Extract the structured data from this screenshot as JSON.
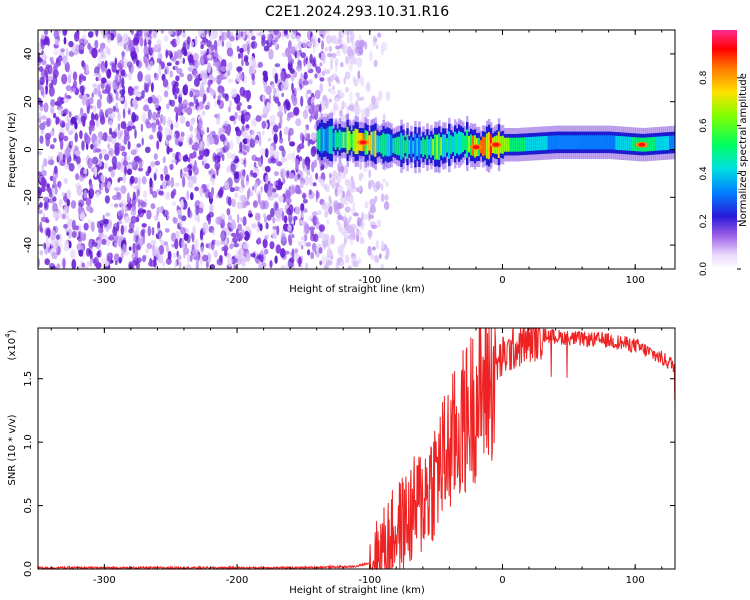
{
  "title": "C2E1.2024.293.10.31.R16",
  "chart_data": [
    {
      "type": "heatmap",
      "xlabel": "Height of straight line (km)",
      "ylabel": "Frequency (Hz)",
      "xlim": [
        -350,
        130
      ],
      "ylim": [
        -50,
        50
      ],
      "xticks": [
        -300,
        -200,
        -100,
        0,
        100
      ],
      "yticks": [
        -40,
        -20,
        0,
        20,
        40
      ],
      "colorbar": {
        "label": "Normalized spectral amplitude",
        "range": [
          0,
          1
        ],
        "ticks": [
          "0.0",
          "0.2",
          "0.4",
          "0.6",
          "0.8"
        ],
        "colors": [
          "#ffffff",
          "#c9a8f5",
          "#7f3fe0",
          "#2a1ad9",
          "#0050ff",
          "#00d6ff",
          "#00ff7a",
          "#7dff00",
          "#fff000",
          "#ff8a00",
          "#ff0000",
          "#ff2aa0"
        ]
      },
      "noise_region_x": [
        -350,
        -105
      ],
      "signal_band": [
        {
          "x": -140,
          "f": 4,
          "amp": 0.5
        },
        {
          "x": -120,
          "f": 4,
          "amp": 0.6
        },
        {
          "x": -105,
          "f": 3,
          "amp": 0.8
        },
        {
          "x": -90,
          "f": 2,
          "amp": 0.6
        },
        {
          "x": -70,
          "f": 1,
          "amp": 0.5
        },
        {
          "x": -50,
          "f": 1,
          "amp": 0.6
        },
        {
          "x": -30,
          "f": 3,
          "amp": 0.55
        },
        {
          "x": -20,
          "f": 1,
          "amp": 0.85
        },
        {
          "x": -5,
          "f": 2,
          "amp": 0.95
        },
        {
          "x": 10,
          "f": 2,
          "amp": 0.7
        },
        {
          "x": 40,
          "f": 3,
          "amp": 0.45
        },
        {
          "x": 80,
          "f": 3,
          "amp": 0.45
        },
        {
          "x": 105,
          "f": 2,
          "amp": 0.75
        },
        {
          "x": 130,
          "f": 3,
          "amp": 0.45
        }
      ]
    },
    {
      "type": "line",
      "xlabel": "Height of straight line (km)",
      "ylabel": "SNR (10 * v/v)",
      "yscale_label": "(x10",
      "yscale_exp": "4",
      "xlim": [
        -350,
        130
      ],
      "ylim": [
        0,
        1.9
      ],
      "xticks": [
        -300,
        -200,
        -100,
        0,
        100
      ],
      "yticks": [
        "0.0",
        "0.5",
        "1.0",
        "1.5"
      ],
      "ytick_values": [
        0,
        0.5,
        1.0,
        1.5
      ],
      "line_color": "#ee2222",
      "series": [
        {
          "x": [
            -350,
            -250,
            -150,
            -110,
            -100,
            -90,
            -80,
            -70,
            -60,
            -50,
            -40,
            -30,
            -20,
            -10,
            0,
            10,
            20,
            30,
            40,
            60,
            80,
            100,
            110,
            120,
            130
          ],
          "y": [
            0.01,
            0.01,
            0.01,
            0.02,
            0.05,
            0.2,
            0.35,
            0.45,
            0.6,
            0.8,
            1.0,
            1.2,
            1.4,
            1.55,
            1.7,
            1.78,
            1.83,
            1.86,
            1.85,
            1.83,
            1.82,
            1.78,
            1.73,
            1.68,
            1.62
          ]
        }
      ]
    }
  ]
}
